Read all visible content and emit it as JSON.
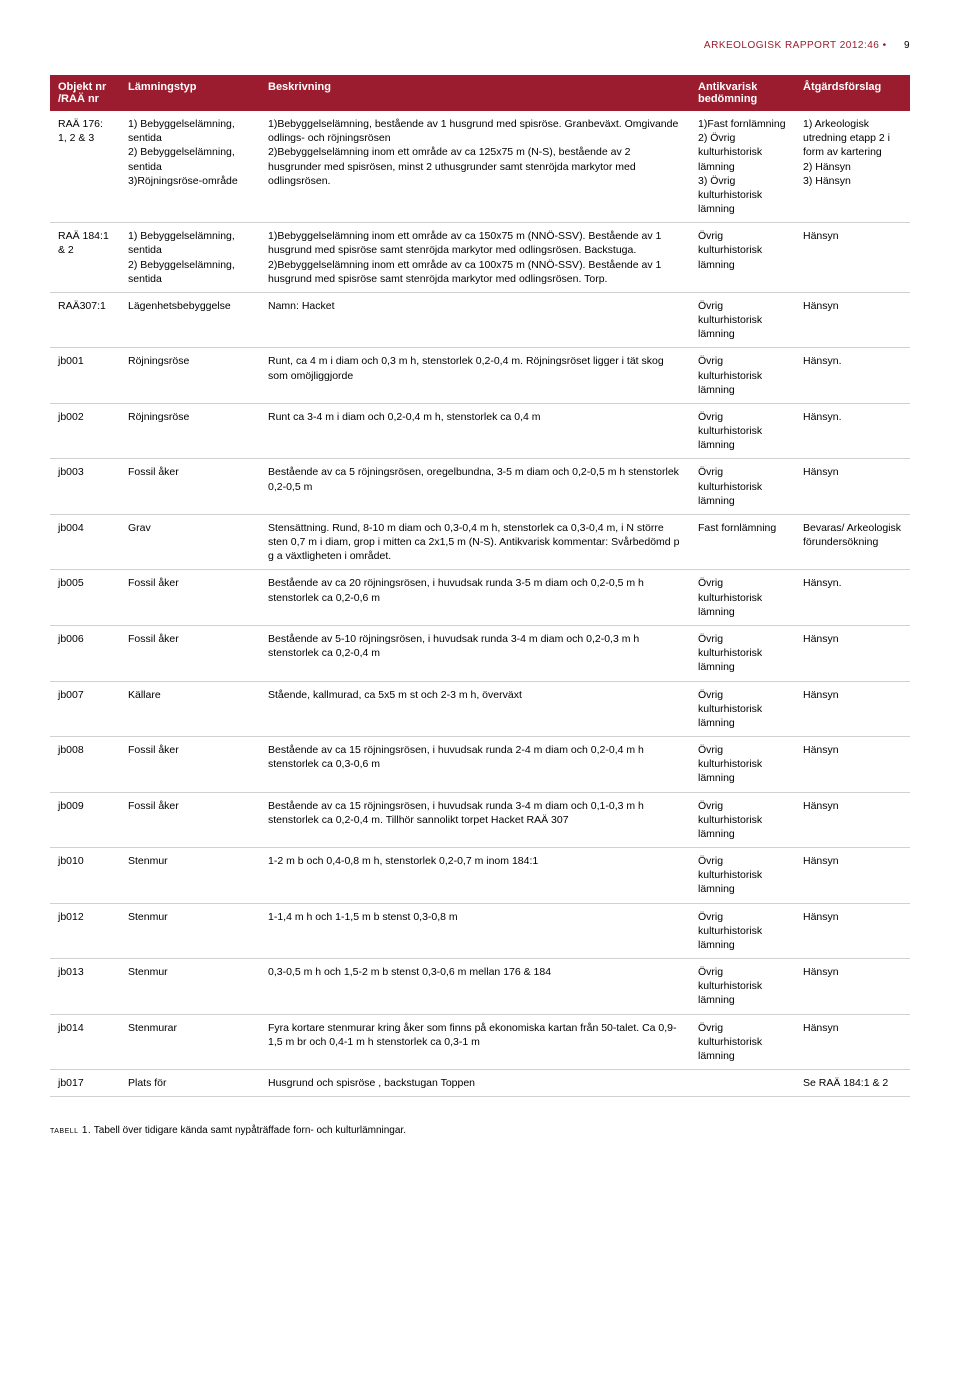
{
  "running_head": "ARKEOLOGISK RAPPORT 2012:46",
  "running_dot": "•",
  "page_number": "9",
  "columns": [
    "Objekt nr /RAÄ nr",
    "Lämningstyp",
    "Beskrivning",
    "Antikvarisk bedömning",
    "Åtgärdsförslag"
  ],
  "rows": [
    {
      "c0": "RAÄ 176: 1, 2 & 3",
      "c1": "1) Bebyggelselämning, sentida\n2) Bebyggelselämning, sentida\n3)Röjningsröse-område",
      "c2": "1)Bebyggelselämning, bestående av 1 husgrund med spisröse. Granbeväxt. Omgivande odlings- och röjningsrösen\n2)Bebyggelselämning inom ett område av ca 125x75 m (N-S), bestående av 2 husgrunder med spisrösen, minst 2 uthusgrunder samt stenröjda markytor med odlingsrösen.",
      "c3": "1)Fast fornlämning\n2) Övrig kulturhistorisk lämning\n3) Övrig kulturhistorisk lämning",
      "c4": "1) Arkeologisk utredning etapp 2 i form av kartering\n2) Hänsyn\n3) Hänsyn"
    },
    {
      "c0": "RAÄ 184:1 & 2",
      "c1": "1) Bebyggelselämning, sentida\n2) Bebyggelselämning, sentida",
      "c2": "1)Bebyggelselämning inom ett område av ca 150x75 m (NNÖ-SSV). Bestående av 1 husgrund med spisröse samt stenröjda markytor med odlingsrösen. Backstuga.\n2)Bebyggelselämning inom ett område av ca 100x75 m (NNÖ-SSV). Bestående av 1 husgrund med spisröse samt stenröjda markytor med odlingsrösen. Torp.",
      "c3": "Övrig kulturhistorisk lämning",
      "c4": "Hänsyn"
    },
    {
      "c0": "RAÄ307:1",
      "c1": "Lägenhetsbebyggelse",
      "c2": "Namn: Hacket",
      "c3": "Övrig kulturhistorisk lämning",
      "c4": "Hänsyn"
    },
    {
      "c0": "jb001",
      "c1": "Röjningsröse",
      "c2": "Runt, ca 4 m i diam och 0,3 m h, stenstorlek 0,2-0,4 m. Röjningsröset ligger i tät skog som omöjliggjorde",
      "c3": "Övrig kulturhistorisk lämning",
      "c4": "Hänsyn."
    },
    {
      "c0": "jb002",
      "c1": "Röjningsröse",
      "c2": "Runt ca 3-4 m i diam och 0,2-0,4 m h, stenstorlek ca 0,4 m",
      "c3": "Övrig kulturhistorisk lämning",
      "c4": "Hänsyn."
    },
    {
      "c0": "jb003",
      "c1": "Fossil åker",
      "c2": "Bestående av ca 5 röjningsrösen, oregelbundna, 3-5 m diam och 0,2-0,5 m h stenstorlek 0,2-0,5 m",
      "c3": "Övrig kulturhistorisk lämning",
      "c4": "Hänsyn"
    },
    {
      "c0": "jb004",
      "c1": "Grav",
      "c2": "Stensättning. Rund, 8-10 m diam och 0,3-0,4 m h, stenstorlek ca 0,3-0,4 m, i N större sten 0,7 m i diam, grop i mitten ca 2x1,5 m (N-S). Antikvarisk kommentar: Svårbedömd p g a växtligheten i området.",
      "c3": "Fast fornlämning",
      "c4": "Bevaras/ Arkeologisk förundersökning"
    },
    {
      "c0": "jb005",
      "c1": "Fossil åker",
      "c2": "Bestående av ca 20 röjningsrösen, i huvudsak runda 3-5 m diam och 0,2-0,5 m h stenstorlek ca 0,2-0,6 m",
      "c3": "Övrig kulturhistorisk lämning",
      "c4": "Hänsyn."
    },
    {
      "c0": "jb006",
      "c1": "Fossil åker",
      "c2": "Bestående av 5-10 röjningsrösen, i huvudsak runda 3-4 m diam och 0,2-0,3 m h stenstorlek ca 0,2-0,4 m",
      "c3": "Övrig kulturhistorisk lämning",
      "c4": "Hänsyn"
    },
    {
      "c0": "jb007",
      "c1": "Källare",
      "c2": "Stående, kallmurad, ca 5x5 m st och 2-3 m h, överväxt",
      "c3": "Övrig kulturhistorisk lämning",
      "c4": "Hänsyn"
    },
    {
      "c0": "jb008",
      "c1": "Fossil åker",
      "c2": "Bestående av ca 15 röjningsrösen, i huvudsak runda 2-4 m diam och 0,2-0,4 m h stenstorlek ca 0,3-0,6 m",
      "c3": "Övrig kulturhistorisk lämning",
      "c4": "Hänsyn"
    },
    {
      "c0": "jb009",
      "c1": "Fossil åker",
      "c2": "Bestående av ca 15 röjningsrösen, i huvudsak runda 3-4 m diam och 0,1-0,3 m h stenstorlek ca 0,2-0,4 m. Tillhör sannolikt torpet Hacket RAÄ 307",
      "c3": "Övrig kulturhistorisk lämning",
      "c4": "Hänsyn"
    },
    {
      "c0": "jb010",
      "c1": "Stenmur",
      "c2": "1-2 m b och 0,4-0,8 m h, stenstorlek 0,2-0,7 m inom 184:1",
      "c3": "Övrig kulturhistorisk lämning",
      "c4": "Hänsyn"
    },
    {
      "c0": "jb012",
      "c1": "Stenmur",
      "c2": "1-1,4 m h och 1-1,5 m b stenst 0,3-0,8 m",
      "c3": "Övrig kulturhistorisk lämning",
      "c4": "Hänsyn"
    },
    {
      "c0": "jb013",
      "c1": "Stenmur",
      "c2": "0,3-0,5 m h och 1,5-2 m  b stenst 0,3-0,6 m mellan 176 & 184",
      "c3": "Övrig kulturhistorisk lämning",
      "c4": "Hänsyn"
    },
    {
      "c0": "jb014",
      "c1": "Stenmurar",
      "c2": "Fyra kortare stenmurar kring åker som finns på ekonomiska kartan från 50-talet. Ca 0,9-1,5 m br och 0,4-1 m h stenstorlek ca 0,3-1 m",
      "c3": "Övrig kulturhistorisk lämning",
      "c4": "Hänsyn"
    },
    {
      "c0": "jb017",
      "c1": "Plats för",
      "c2": "Husgrund och spisröse , backstugan Toppen",
      "c3": "",
      "c4": "Se RAÄ 184:1 & 2"
    }
  ],
  "caption_label": "tabell 1.",
  "caption_text": " Tabell över tidigare kända samt nypåträffade forn- och kulturlämningar."
}
